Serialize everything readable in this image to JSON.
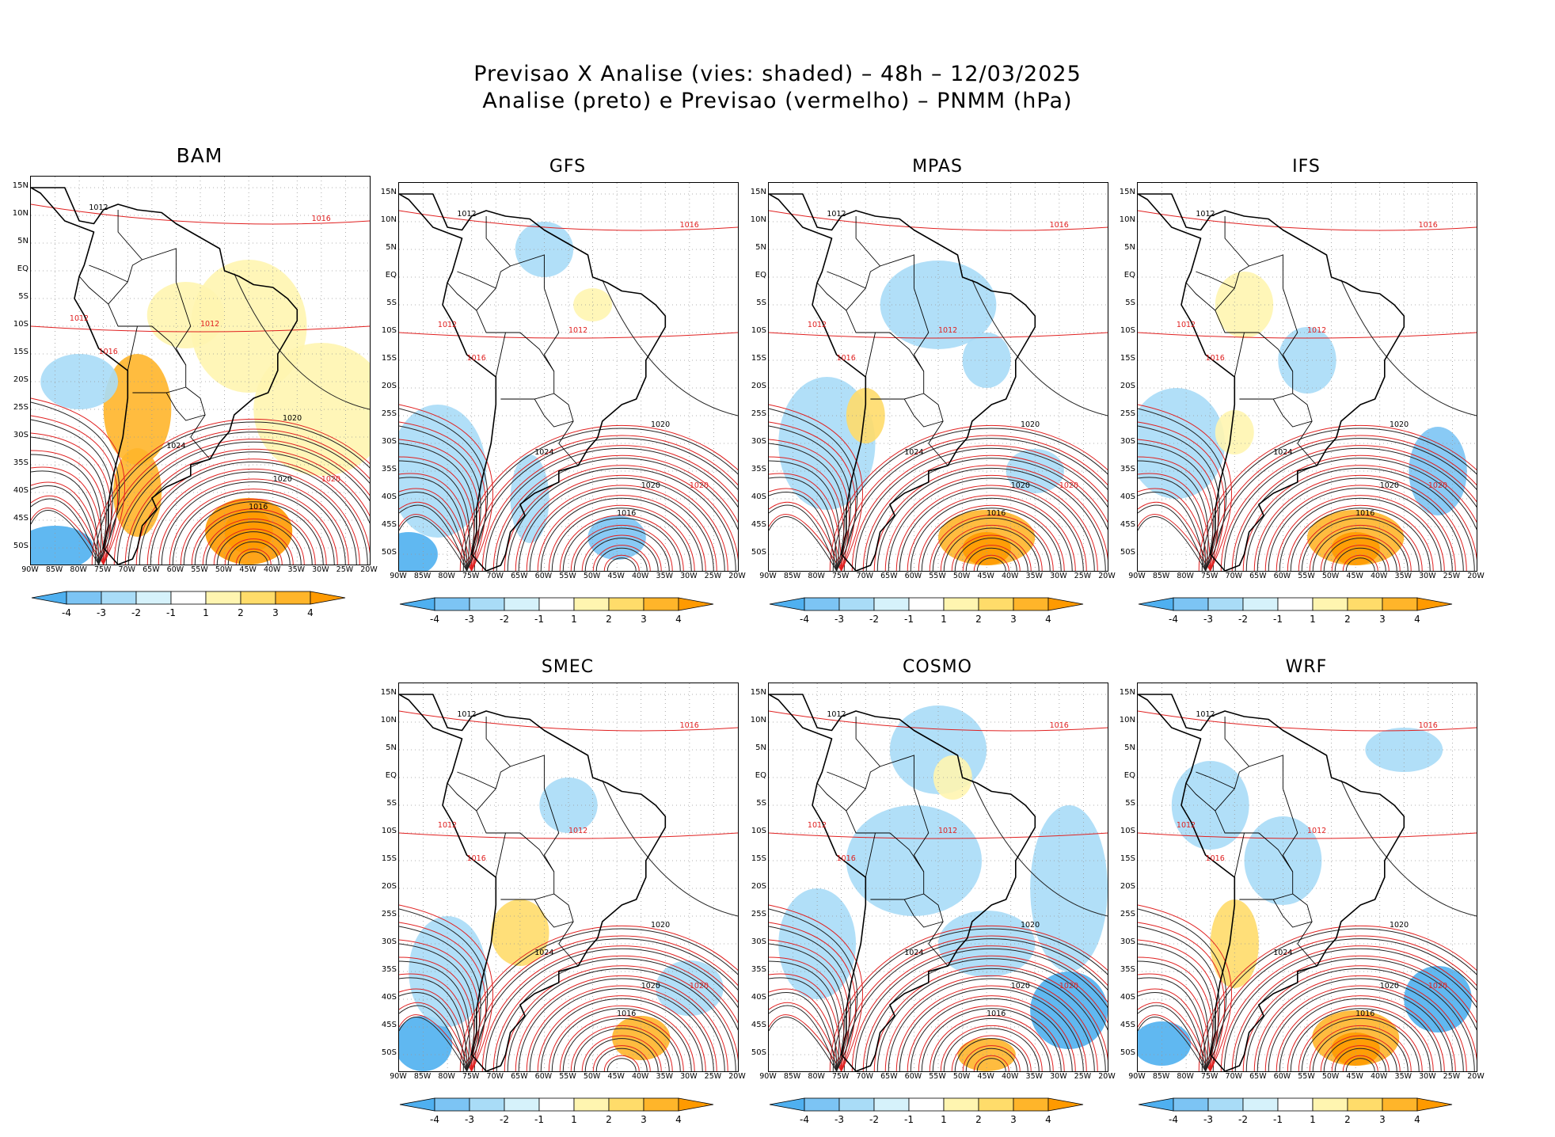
{
  "page": {
    "title_line1": "Previsao X Analise (vies: shaded) – 48h – 12/03/2025",
    "title_line2": "Analise (preto) e Previsao (vermelho) – PNMM (hPa)"
  },
  "chart_data": {
    "type": "contour-map-grid",
    "variable": "PNMM (hPa)",
    "lead_time": "48h",
    "date": "12/03/2025",
    "panels": [
      {
        "model": "BAM"
      },
      {
        "model": "GFS"
      },
      {
        "model": "MPAS"
      },
      {
        "model": "IFS"
      },
      {
        "model": "SMEC"
      },
      {
        "model": "COSMO"
      },
      {
        "model": "WRF"
      }
    ],
    "lat_ticks": [
      "15N",
      "10N",
      "5N",
      "EQ",
      "5S",
      "10S",
      "15S",
      "20S",
      "25S",
      "30S",
      "35S",
      "40S",
      "45S",
      "50S"
    ],
    "lon_ticks": [
      "90W",
      "85W",
      "80W",
      "75W",
      "70W",
      "65W",
      "60W",
      "55W",
      "50W",
      "45W",
      "40W",
      "35W",
      "30W",
      "25W",
      "20W"
    ],
    "lat_range": [
      -53,
      17
    ],
    "lon_range": [
      -90,
      -20
    ],
    "colorbar": {
      "labels": [
        "-4",
        "-3",
        "-2",
        "-1",
        "1",
        "2",
        "3",
        "4"
      ],
      "colors": [
        "#4fb0f0",
        "#7cc4f4",
        "#a9dcf7",
        "#d6f2fb",
        "#ffffff",
        "#fff5b0",
        "#ffdc6a",
        "#ffb52a",
        "#ff9a00"
      ]
    },
    "contour_labels": {
      "analysis_color": "#000000",
      "forecast_color": "#e02020",
      "levels": [
        "1012",
        "1016",
        "1020",
        "1024"
      ]
    }
  }
}
